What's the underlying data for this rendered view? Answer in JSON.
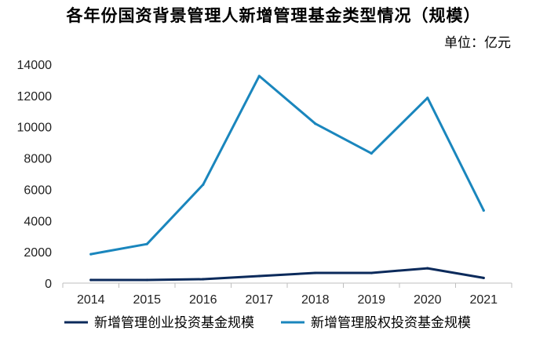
{
  "chart_data": {
    "type": "line",
    "title": "各年份国资背景管理人新增管理基金类型情况（规模）",
    "unit_label": "单位：亿元",
    "categories": [
      "2014",
      "2015",
      "2016",
      "2017",
      "2018",
      "2019",
      "2020",
      "2021"
    ],
    "y_ticks": [
      "0",
      "2000",
      "4000",
      "6000",
      "8000",
      "10000",
      "12000",
      "14000"
    ],
    "ylim": [
      0,
      14000
    ],
    "series": [
      {
        "name": "新增管理创业投资基金规模",
        "color": "#0b2a5b",
        "values": [
          200,
          200,
          250,
          450,
          650,
          650,
          950,
          330
        ]
      },
      {
        "name": "新增管理股权投资基金规模",
        "color": "#1a86bd",
        "values": [
          1850,
          2500,
          6300,
          13250,
          10200,
          8300,
          11850,
          4650
        ]
      }
    ]
  }
}
